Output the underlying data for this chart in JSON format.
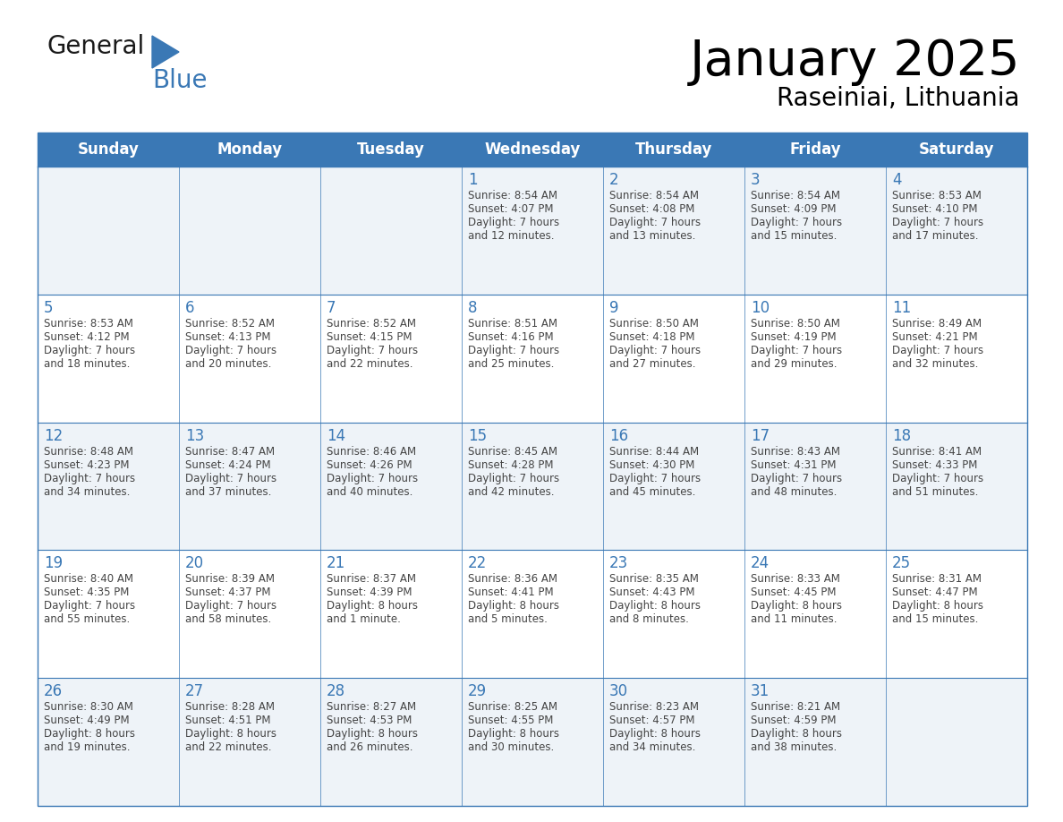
{
  "title": "January 2025",
  "subtitle": "Raseiniai, Lithuania",
  "header_bg": "#3A78B5",
  "header_text_color": "#FFFFFF",
  "cell_bg_light": "#EEF3F8",
  "cell_bg_white": "#FFFFFF",
  "day_names": [
    "Sunday",
    "Monday",
    "Tuesday",
    "Wednesday",
    "Thursday",
    "Friday",
    "Saturday"
  ],
  "grid_color": "#3A78B5",
  "day_number_color": "#3A78B5",
  "cell_text_color": "#444444",
  "logo_general_color": "#1a1a1a",
  "logo_blue_color": "#3A78B5",
  "logo_triangle_color": "#3A78B5",
  "calendar_data": [
    [
      null,
      null,
      null,
      {
        "day": 1,
        "sunrise": "8:54 AM",
        "sunset": "4:07 PM",
        "daylight": "7 hours\nand 12 minutes."
      },
      {
        "day": 2,
        "sunrise": "8:54 AM",
        "sunset": "4:08 PM",
        "daylight": "7 hours\nand 13 minutes."
      },
      {
        "day": 3,
        "sunrise": "8:54 AM",
        "sunset": "4:09 PM",
        "daylight": "7 hours\nand 15 minutes."
      },
      {
        "day": 4,
        "sunrise": "8:53 AM",
        "sunset": "4:10 PM",
        "daylight": "7 hours\nand 17 minutes."
      }
    ],
    [
      {
        "day": 5,
        "sunrise": "8:53 AM",
        "sunset": "4:12 PM",
        "daylight": "7 hours\nand 18 minutes."
      },
      {
        "day": 6,
        "sunrise": "8:52 AM",
        "sunset": "4:13 PM",
        "daylight": "7 hours\nand 20 minutes."
      },
      {
        "day": 7,
        "sunrise": "8:52 AM",
        "sunset": "4:15 PM",
        "daylight": "7 hours\nand 22 minutes."
      },
      {
        "day": 8,
        "sunrise": "8:51 AM",
        "sunset": "4:16 PM",
        "daylight": "7 hours\nand 25 minutes."
      },
      {
        "day": 9,
        "sunrise": "8:50 AM",
        "sunset": "4:18 PM",
        "daylight": "7 hours\nand 27 minutes."
      },
      {
        "day": 10,
        "sunrise": "8:50 AM",
        "sunset": "4:19 PM",
        "daylight": "7 hours\nand 29 minutes."
      },
      {
        "day": 11,
        "sunrise": "8:49 AM",
        "sunset": "4:21 PM",
        "daylight": "7 hours\nand 32 minutes."
      }
    ],
    [
      {
        "day": 12,
        "sunrise": "8:48 AM",
        "sunset": "4:23 PM",
        "daylight": "7 hours\nand 34 minutes."
      },
      {
        "day": 13,
        "sunrise": "8:47 AM",
        "sunset": "4:24 PM",
        "daylight": "7 hours\nand 37 minutes."
      },
      {
        "day": 14,
        "sunrise": "8:46 AM",
        "sunset": "4:26 PM",
        "daylight": "7 hours\nand 40 minutes."
      },
      {
        "day": 15,
        "sunrise": "8:45 AM",
        "sunset": "4:28 PM",
        "daylight": "7 hours\nand 42 minutes."
      },
      {
        "day": 16,
        "sunrise": "8:44 AM",
        "sunset": "4:30 PM",
        "daylight": "7 hours\nand 45 minutes."
      },
      {
        "day": 17,
        "sunrise": "8:43 AM",
        "sunset": "4:31 PM",
        "daylight": "7 hours\nand 48 minutes."
      },
      {
        "day": 18,
        "sunrise": "8:41 AM",
        "sunset": "4:33 PM",
        "daylight": "7 hours\nand 51 minutes."
      }
    ],
    [
      {
        "day": 19,
        "sunrise": "8:40 AM",
        "sunset": "4:35 PM",
        "daylight": "7 hours\nand 55 minutes."
      },
      {
        "day": 20,
        "sunrise": "8:39 AM",
        "sunset": "4:37 PM",
        "daylight": "7 hours\nand 58 minutes."
      },
      {
        "day": 21,
        "sunrise": "8:37 AM",
        "sunset": "4:39 PM",
        "daylight": "8 hours\nand 1 minute."
      },
      {
        "day": 22,
        "sunrise": "8:36 AM",
        "sunset": "4:41 PM",
        "daylight": "8 hours\nand 5 minutes."
      },
      {
        "day": 23,
        "sunrise": "8:35 AM",
        "sunset": "4:43 PM",
        "daylight": "8 hours\nand 8 minutes."
      },
      {
        "day": 24,
        "sunrise": "8:33 AM",
        "sunset": "4:45 PM",
        "daylight": "8 hours\nand 11 minutes."
      },
      {
        "day": 25,
        "sunrise": "8:31 AM",
        "sunset": "4:47 PM",
        "daylight": "8 hours\nand 15 minutes."
      }
    ],
    [
      {
        "day": 26,
        "sunrise": "8:30 AM",
        "sunset": "4:49 PM",
        "daylight": "8 hours\nand 19 minutes."
      },
      {
        "day": 27,
        "sunrise": "8:28 AM",
        "sunset": "4:51 PM",
        "daylight": "8 hours\nand 22 minutes."
      },
      {
        "day": 28,
        "sunrise": "8:27 AM",
        "sunset": "4:53 PM",
        "daylight": "8 hours\nand 26 minutes."
      },
      {
        "day": 29,
        "sunrise": "8:25 AM",
        "sunset": "4:55 PM",
        "daylight": "8 hours\nand 30 minutes."
      },
      {
        "day": 30,
        "sunrise": "8:23 AM",
        "sunset": "4:57 PM",
        "daylight": "8 hours\nand 34 minutes."
      },
      {
        "day": 31,
        "sunrise": "8:21 AM",
        "sunset": "4:59 PM",
        "daylight": "8 hours\nand 38 minutes."
      },
      null
    ]
  ]
}
